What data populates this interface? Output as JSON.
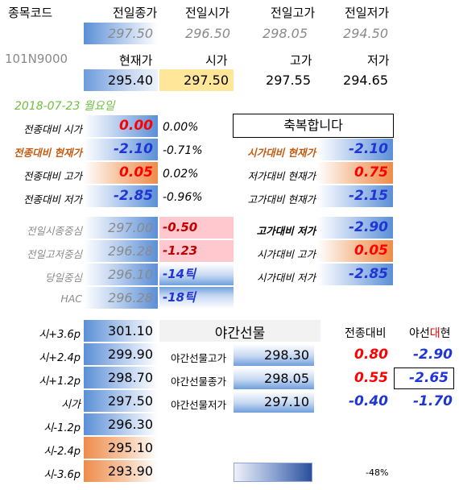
{
  "header": {
    "code_label": "종목코드",
    "code_value": "101N9000",
    "prev_close_label": "전일종가",
    "prev_open_label": "전일시가",
    "prev_high_label": "전일고가",
    "prev_low_label": "전일저가",
    "prev_close": "297.50",
    "prev_open": "296.50",
    "prev_high": "298.05",
    "prev_low": "294.50",
    "cur_label": "현재가",
    "open_label": "시가",
    "high_label": "고가",
    "low_label": "저가",
    "cur": "295.40",
    "open": "297.50",
    "high": "297.55",
    "low": "294.65",
    "date": "2018-07-23  월요일",
    "congrats": "축복합니다"
  },
  "compare_left": [
    {
      "label": "전종대비 시가",
      "value": "0.00",
      "pct": "0.00%"
    },
    {
      "label": "전종대비 현재가",
      "value": "-2.10",
      "pct": "-0.71%"
    },
    {
      "label": "전종대비 고가",
      "value": "0.05",
      "pct": "0.02%"
    },
    {
      "label": "전종대비 저가",
      "value": "-2.85",
      "pct": "-0.96%"
    }
  ],
  "compare_right": [
    {
      "label": "시가대비 현재가",
      "value": "-2.10"
    },
    {
      "label": "저가대비 현재가",
      "value": "0.75"
    },
    {
      "label": "고가대비 현재가",
      "value": "-2.15"
    }
  ],
  "mid_left": [
    {
      "label": "전일시종중심",
      "value": "297.00",
      "diff": "-0.50"
    },
    {
      "label": "전일고저중심",
      "value": "296.28",
      "diff": "-1.23"
    },
    {
      "label": "당일중심",
      "value": "296.10",
      "diff": "-14틱"
    },
    {
      "label": "HAC",
      "value": "296.28",
      "diff": "-18틱"
    }
  ],
  "mid_right": [
    {
      "label": "고가대비 저가",
      "value": "-2.90"
    },
    {
      "label": "시가대비 고가",
      "value": "0.05"
    },
    {
      "label": "시가대비 저가",
      "value": "-2.85"
    }
  ],
  "levels": [
    {
      "label": "시+3.6p",
      "value": "301.10"
    },
    {
      "label": "시+2.4p",
      "value": "299.90"
    },
    {
      "label": "시+1.2p",
      "value": "298.70"
    },
    {
      "label": "시가",
      "value": "297.50"
    },
    {
      "label": "시-1.2p",
      "value": "296.30"
    },
    {
      "label": "시-2.4p",
      "value": "295.10"
    },
    {
      "label": "시-3.6p",
      "value": "293.90"
    }
  ],
  "night": {
    "title": "야간선물",
    "col1": "전종대비",
    "col2_a": "야선",
    "col2_b": "대",
    "col2_c": "현",
    "rows": [
      {
        "label": "야간선물고가",
        "value": "298.30",
        "vs_prev": "0.80",
        "vs_cur": "-2.90"
      },
      {
        "label": "야간선물종가",
        "value": "298.05",
        "vs_prev": "0.55",
        "vs_cur": "-2.65"
      },
      {
        "label": "야간선물저가",
        "value": "297.10",
        "vs_prev": "-0.40",
        "vs_cur": "-1.70"
      }
    ]
  },
  "footer": {
    "pct": "-48%",
    "bar_fraction": 0.48
  },
  "colors": {
    "red": "#ff0000",
    "blue": "#1f35d6",
    "orange_label": "#c55a11"
  }
}
